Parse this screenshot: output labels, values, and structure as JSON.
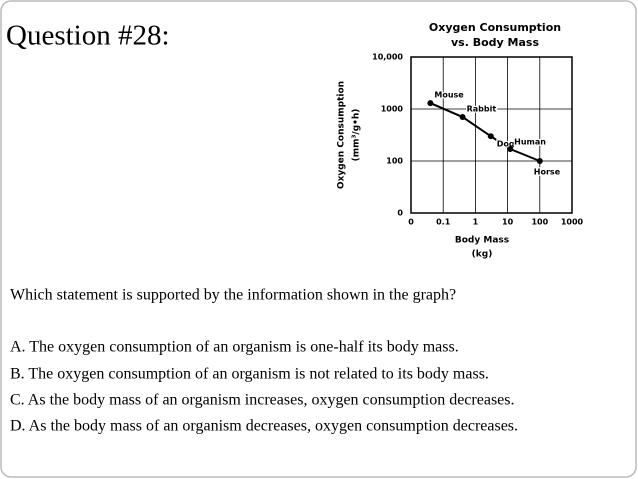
{
  "question_title": "Question #28:",
  "chart_data": {
    "type": "line",
    "title": "Oxygen Consumption",
    "subtitle": "vs. Body Mass",
    "ylabel": [
      "Oxygen Consumption",
      "(mm³/g•h)"
    ],
    "xlabel": [
      "Body Mass",
      "(kg)"
    ],
    "x": [
      0.04,
      0.4,
      3,
      12,
      100
    ],
    "values": [
      1300,
      700,
      300,
      170,
      100
    ],
    "point_labels": [
      "Mouse",
      "Rabbit",
      "Dog",
      "Human",
      "Horse"
    ],
    "color": "#000000",
    "xlog": true,
    "ylog": true,
    "grid": true,
    "xlim": [
      0.01,
      1000
    ],
    "ylim": [
      10,
      10000
    ],
    "xticks": [
      {
        "value": 0.01,
        "label": "0"
      },
      0.1,
      1,
      10,
      100,
      1000
    ],
    "yticks": [
      {
        "value": 10,
        "label": "0"
      },
      100,
      1000,
      {
        "value": 10000,
        "label": "10,000"
      }
    ]
  },
  "question": {
    "stem": "Which statement is supported by the information shown in the graph?",
    "options": [
      "A. The oxygen consumption of an organism is one-half its body mass.",
      "B. The oxygen consumption of an organism is not related to its body mass.",
      "C. As the body mass of an organism increases, oxygen consumption decreases.",
      "D. As the body mass of an organism decreases, oxygen consumption decreases."
    ]
  }
}
